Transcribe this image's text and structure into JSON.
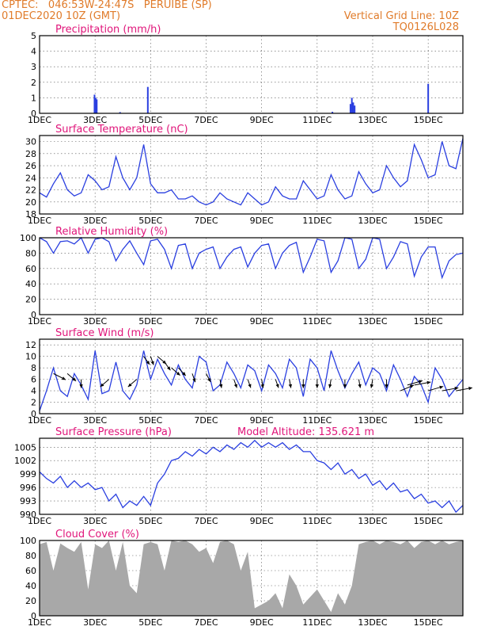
{
  "header": {
    "line1": "CPTEC:   046:53W-24:47S   PERUIBE (SP)",
    "line2": "01DEC2020 10Z (GMT)",
    "right1": "Vertical Grid Line: 10Z",
    "right2": "TQ0126L028"
  },
  "colors": {
    "header": "#e07b2a",
    "title": "#e0157a",
    "line": "#2a3fe0",
    "cloud": "#a8a8a8",
    "grid": "#555555"
  },
  "x_ticks": [
    "1DEC",
    "3DEC",
    "5DEC",
    "7DEC",
    "9DEC",
    "11DEC",
    "13DEC",
    "15DEC"
  ],
  "x_tick_days": [
    0,
    2,
    4,
    6,
    8,
    10,
    12,
    14
  ],
  "x_range_days": [
    0,
    15.25
  ],
  "chart_data": [
    {
      "id": "precip",
      "type": "bar",
      "title": "Precipitation (mm/h)",
      "ylim": [
        0,
        5
      ],
      "yticks": [
        0,
        1,
        2,
        3,
        4,
        5
      ],
      "x_days": [
        1.98,
        2.02,
        2.06,
        2.9,
        3.9,
        10.55,
        11.2,
        11.25,
        11.3,
        11.35,
        14.0
      ],
      "values": [
        1.2,
        1.0,
        0.9,
        0.08,
        1.7,
        0.1,
        0.6,
        1.0,
        0.7,
        0.5,
        1.9
      ]
    },
    {
      "id": "temp",
      "type": "line",
      "title": "Surface Temperature (nC)",
      "ylim": [
        18,
        31
      ],
      "yticks": [
        18,
        20,
        22,
        24,
        26,
        28,
        30
      ],
      "x_days": [
        0,
        0.25,
        0.5,
        0.75,
        1.0,
        1.25,
        1.5,
        1.75,
        2.0,
        2.25,
        2.5,
        2.75,
        3.0,
        3.25,
        3.5,
        3.75,
        4.0,
        4.25,
        4.5,
        4.75,
        5.0,
        5.25,
        5.5,
        5.75,
        6.0,
        6.25,
        6.5,
        6.75,
        7.0,
        7.25,
        7.5,
        7.75,
        8.0,
        8.25,
        8.5,
        8.75,
        9.0,
        9.25,
        9.5,
        9.75,
        10.0,
        10.25,
        10.5,
        10.75,
        11.0,
        11.25,
        11.5,
        11.75,
        12.0,
        12.25,
        12.5,
        12.75,
        13.0,
        13.25,
        13.5,
        13.75,
        14.0,
        14.25,
        14.5,
        14.75,
        15.0,
        15.25
      ],
      "values": [
        21.5,
        20.8,
        23.0,
        24.8,
        22.0,
        21.0,
        21.5,
        24.5,
        23.5,
        22.0,
        22.5,
        27.5,
        24.0,
        22.0,
        24.0,
        29.5,
        23.0,
        21.5,
        21.5,
        22.0,
        20.5,
        20.5,
        21.0,
        20.0,
        19.5,
        20.0,
        21.5,
        20.5,
        20.0,
        19.5,
        21.5,
        20.5,
        19.5,
        20.0,
        22.5,
        21.0,
        20.5,
        20.5,
        23.5,
        22.0,
        20.5,
        21.0,
        24.5,
        22.0,
        20.5,
        21.0,
        25.0,
        23.0,
        21.5,
        22.0,
        26.0,
        24.0,
        22.5,
        23.5,
        29.5,
        27.0,
        24.0,
        24.5,
        30.0,
        26.0,
        25.5,
        30.5
      ]
    },
    {
      "id": "rh",
      "type": "line",
      "title": "Relative Humidity (%)",
      "ylim": [
        0,
        100
      ],
      "yticks": [
        0,
        20,
        40,
        60,
        80,
        100
      ],
      "x_days": [
        0,
        0.25,
        0.5,
        0.75,
        1.0,
        1.25,
        1.5,
        1.75,
        2.0,
        2.25,
        2.5,
        2.75,
        3.0,
        3.25,
        3.5,
        3.75,
        4.0,
        4.25,
        4.5,
        4.75,
        5.0,
        5.25,
        5.5,
        5.75,
        6.0,
        6.25,
        6.5,
        6.75,
        7.0,
        7.25,
        7.5,
        7.75,
        8.0,
        8.25,
        8.5,
        8.75,
        9.0,
        9.25,
        9.5,
        9.75,
        10.0,
        10.25,
        10.5,
        10.75,
        11.0,
        11.25,
        11.5,
        11.75,
        12.0,
        12.25,
        12.5,
        12.75,
        13.0,
        13.25,
        13.5,
        13.75,
        14.0,
        14.25,
        14.5,
        14.75,
        15.0,
        15.25
      ],
      "values": [
        100,
        95,
        80,
        95,
        96,
        92,
        100,
        80,
        98,
        100,
        95,
        70,
        85,
        96,
        80,
        65,
        96,
        98,
        85,
        60,
        90,
        92,
        60,
        80,
        85,
        88,
        60,
        75,
        85,
        88,
        62,
        80,
        90,
        92,
        60,
        80,
        90,
        94,
        55,
        75,
        98,
        96,
        55,
        70,
        100,
        98,
        60,
        72,
        100,
        98,
        60,
        75,
        95,
        92,
        50,
        75,
        88,
        88,
        48,
        70,
        78,
        80
      ]
    },
    {
      "id": "wind",
      "type": "line",
      "title": "Surface Wind (m/s)",
      "ylim": [
        0,
        13
      ],
      "yticks": [
        0,
        2,
        4,
        6,
        8,
        10,
        12
      ],
      "x_days": [
        0,
        0.25,
        0.5,
        0.75,
        1.0,
        1.25,
        1.5,
        1.75,
        2.0,
        2.25,
        2.5,
        2.75,
        3.0,
        3.25,
        3.5,
        3.75,
        4.0,
        4.25,
        4.5,
        4.75,
        5.0,
        5.25,
        5.5,
        5.75,
        6.0,
        6.25,
        6.5,
        6.75,
        7.0,
        7.25,
        7.5,
        7.75,
        8.0,
        8.25,
        8.5,
        8.75,
        9.0,
        9.25,
        9.5,
        9.75,
        10.0,
        10.25,
        10.5,
        10.75,
        11.0,
        11.25,
        11.5,
        11.75,
        12.0,
        12.25,
        12.5,
        12.75,
        13.0,
        13.25,
        13.5,
        13.75,
        14.0,
        14.25,
        14.5,
        14.75,
        15.0,
        15.25
      ],
      "values": [
        0.5,
        4.0,
        8.0,
        4.0,
        3.0,
        7.0,
        5.0,
        2.5,
        11.0,
        3.5,
        4.0,
        9.0,
        4.0,
        2.5,
        5.0,
        11.0,
        6.0,
        9.5,
        7.0,
        5.0,
        8.5,
        6.0,
        4.5,
        10.0,
        9.0,
        4.0,
        5.0,
        9.0,
        7.0,
        4.5,
        8.5,
        7.5,
        4.0,
        8.5,
        7.0,
        4.5,
        9.5,
        8.0,
        3.0,
        9.5,
        8.0,
        4.0,
        11.0,
        7.5,
        4.5,
        7.0,
        9.0,
        5.0,
        8.0,
        7.0,
        4.0,
        8.5,
        6.0,
        3.0,
        6.5,
        5.0,
        2.0,
        8.0,
        6.0,
        3.0,
        4.5,
        6.0
      ]
    },
    {
      "id": "pressure",
      "type": "line",
      "title": "Surface Pressure (hPa)",
      "subtitle": "Model Altitude: 135.621  m",
      "ylim": [
        990,
        1007
      ],
      "yticks": [
        990,
        993,
        996,
        999,
        1002,
        1005
      ],
      "x_days": [
        0,
        0.25,
        0.5,
        0.75,
        1.0,
        1.25,
        1.5,
        1.75,
        2.0,
        2.25,
        2.5,
        2.75,
        3.0,
        3.25,
        3.5,
        3.75,
        4.0,
        4.25,
        4.5,
        4.75,
        5.0,
        5.25,
        5.5,
        5.75,
        6.0,
        6.25,
        6.5,
        6.75,
        7.0,
        7.25,
        7.5,
        7.75,
        8.0,
        8.25,
        8.5,
        8.75,
        9.0,
        9.25,
        9.5,
        9.75,
        10.0,
        10.25,
        10.5,
        10.75,
        11.0,
        11.25,
        11.5,
        11.75,
        12.0,
        12.25,
        12.5,
        12.75,
        13.0,
        13.25,
        13.5,
        13.75,
        14.0,
        14.25,
        14.5,
        14.75,
        15.0,
        15.25
      ],
      "values": [
        999.5,
        998,
        997,
        998.5,
        996,
        997.5,
        996,
        997,
        995.5,
        996,
        993,
        994.5,
        991.5,
        993,
        992,
        994,
        992,
        997,
        999,
        1002,
        1002.5,
        1004,
        1003,
        1004.5,
        1003.5,
        1005,
        1004,
        1005.5,
        1004.5,
        1006,
        1005,
        1006.5,
        1005,
        1006,
        1005,
        1006,
        1004.5,
        1005.5,
        1004,
        1004,
        1002,
        1001.5,
        1000,
        1001.5,
        999,
        1000,
        998,
        999,
        996.5,
        997.5,
        995.5,
        997,
        995,
        995.5,
        993.5,
        994.5,
        992.5,
        993,
        991.5,
        993,
        990.5,
        992
      ]
    },
    {
      "id": "cloud",
      "type": "area",
      "title": "Cloud Cover (%)",
      "ylim": [
        0,
        100
      ],
      "yticks": [
        0,
        20,
        40,
        60,
        80,
        100
      ],
      "x_days": [
        0,
        0.25,
        0.5,
        0.75,
        1.0,
        1.25,
        1.5,
        1.75,
        2.0,
        2.25,
        2.5,
        2.75,
        3.0,
        3.25,
        3.5,
        3.75,
        4.0,
        4.25,
        4.5,
        4.75,
        5.0,
        5.25,
        5.5,
        5.75,
        6.0,
        6.25,
        6.5,
        6.75,
        7.0,
        7.25,
        7.5,
        7.75,
        8.0,
        8.25,
        8.5,
        8.75,
        9.0,
        9.25,
        9.5,
        9.75,
        10.0,
        10.25,
        10.5,
        10.75,
        11.0,
        11.25,
        11.5,
        11.75,
        12.0,
        12.25,
        12.5,
        12.75,
        13.0,
        13.25,
        13.5,
        13.75,
        14.0,
        14.25,
        14.5,
        14.75,
        15.0,
        15.25
      ],
      "values": [
        95,
        98,
        60,
        96,
        90,
        85,
        98,
        35,
        95,
        90,
        100,
        60,
        98,
        40,
        30,
        95,
        98,
        95,
        60,
        100,
        98,
        100,
        95,
        85,
        90,
        70,
        98,
        100,
        95,
        60,
        85,
        10,
        15,
        20,
        30,
        10,
        55,
        40,
        15,
        25,
        35,
        20,
        5,
        30,
        15,
        40,
        95,
        98,
        100,
        95,
        100,
        98,
        95,
        100,
        90,
        98,
        100,
        95,
        100,
        95,
        98,
        100
      ]
    }
  ],
  "wind_arrows": {
    "x_days": [
      0.5,
      1.0,
      1.5,
      2.5,
      3.5,
      3.75,
      4.0,
      4.25,
      4.5,
      4.75,
      5.0,
      5.5,
      6.0,
      6.5,
      7.0,
      7.5,
      8.0,
      8.5,
      9.0,
      9.5,
      10.0,
      10.5,
      11.0,
      11.5,
      12.0,
      12.5,
      13.0,
      13.25,
      13.5,
      14.0,
      14.5,
      15.0
    ],
    "speeds": [
      7,
      7,
      6,
      6,
      6,
      10,
      10,
      10,
      9,
      8,
      8,
      7,
      7,
      6,
      6,
      6,
      6,
      6,
      6,
      6,
      6,
      6,
      6,
      6,
      6,
      6,
      4,
      5,
      5,
      4,
      4,
      4
    ],
    "dir_deg": [
      135,
      120,
      90,
      60,
      60,
      110,
      100,
      120,
      110,
      120,
      115,
      100,
      105,
      95,
      100,
      100,
      95,
      100,
      95,
      90,
      90,
      85,
      90,
      95,
      85,
      90,
      220,
      210,
      200,
      210,
      200,
      200
    ]
  }
}
